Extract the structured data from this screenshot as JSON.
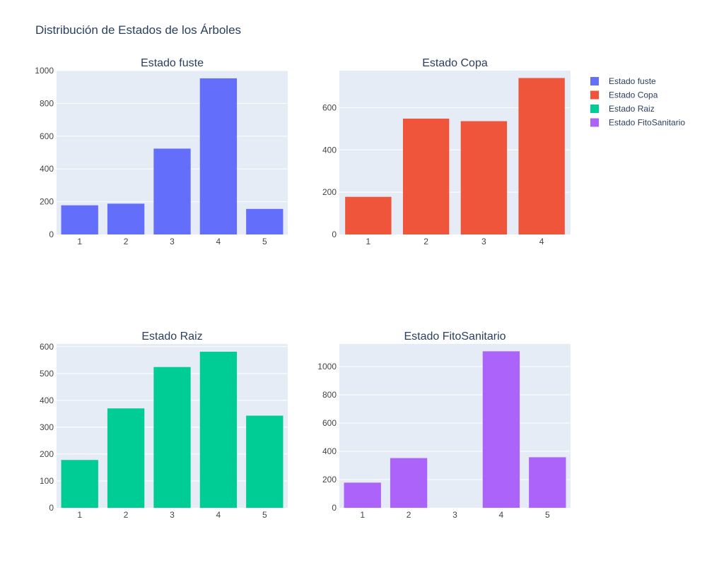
{
  "title": "Distribución de Estados de los Árboles",
  "chart_data": [
    {
      "type": "bar",
      "title": "Estado fuste",
      "color": "#636efa",
      "categories": [
        "1",
        "2",
        "3",
        "4",
        "5"
      ],
      "values": [
        178,
        188,
        524,
        953,
        156
      ],
      "ylim": [
        0,
        1000
      ],
      "yticks": [
        "0",
        "200",
        "400",
        "600",
        "800",
        "1000"
      ],
      "ytick_values": [
        0,
        200,
        400,
        600,
        800,
        1000
      ]
    },
    {
      "type": "bar",
      "title": "Estado Copa",
      "color": "#ef553b",
      "categories": [
        "1",
        "2",
        "3",
        "4"
      ],
      "values": [
        178,
        548,
        536,
        740
      ],
      "ylim": [
        0,
        775
      ],
      "yticks": [
        "0",
        "200",
        "400",
        "600"
      ],
      "ytick_values": [
        0,
        200,
        400,
        600
      ]
    },
    {
      "type": "bar",
      "title": "Estado Raiz",
      "color": "#00cc96",
      "categories": [
        "1",
        "2",
        "3",
        "4",
        "5"
      ],
      "values": [
        178,
        370,
        524,
        581,
        343
      ],
      "ylim": [
        0,
        610
      ],
      "yticks": [
        "0",
        "100",
        "200",
        "300",
        "400",
        "500",
        "600"
      ],
      "ytick_values": [
        0,
        100,
        200,
        300,
        400,
        500,
        600
      ]
    },
    {
      "type": "bar",
      "title": "Estado FitoSanitario",
      "color": "#ab63fa",
      "categories": [
        "1",
        "2",
        "3",
        "4",
        "5"
      ],
      "values": [
        178,
        352,
        0,
        1108,
        358
      ],
      "ylim": [
        0,
        1160
      ],
      "yticks": [
        "0",
        "200",
        "400",
        "600",
        "800",
        "1000"
      ],
      "ytick_values": [
        0,
        200,
        400,
        600,
        800,
        1000
      ]
    }
  ],
  "legend": {
    "placement": "top-right",
    "items": [
      {
        "label": "Estado fuste",
        "color": "#636efa"
      },
      {
        "label": "Estado Copa",
        "color": "#ef553b"
      },
      {
        "label": "Estado Raiz",
        "color": "#00cc96"
      },
      {
        "label": "Estado FitoSanitario",
        "color": "#ab63fa"
      }
    ]
  },
  "style": {
    "plot_bg": "#e5ecf6",
    "grid": "#ffffff"
  }
}
